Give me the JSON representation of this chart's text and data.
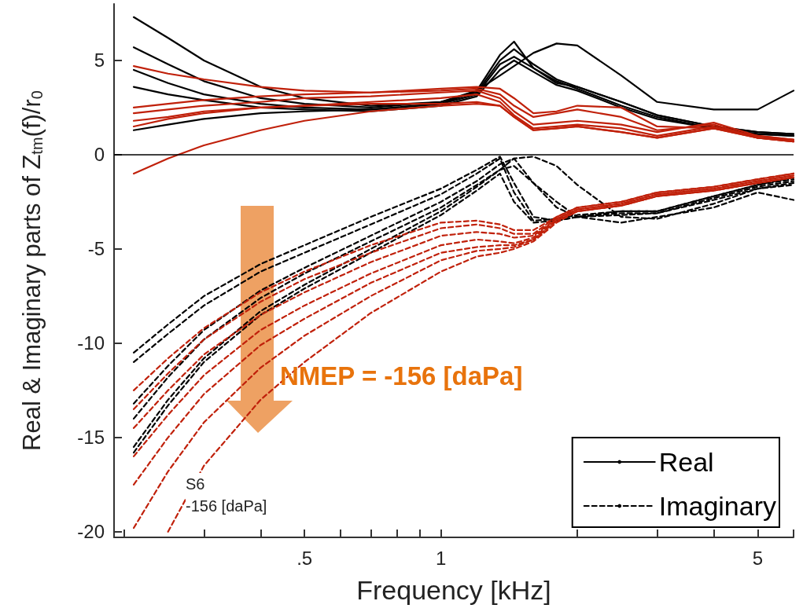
{
  "chart_data": {
    "type": "line",
    "xlabel": "Frequency [kHz]",
    "ylabel": "Real & Imaginary parts of Z$_{tm}$(f)/r$_{0}$",
    "log": "x",
    "grid": false,
    "legend": "bottom right",
    "marker": "none",
    "xlim": [
      0.19,
      6.0
    ],
    "ylim": [
      -20.3,
      8
    ],
    "xticks": [
      {
        "value": 0.2,
        "label": null
      },
      {
        "value": 0.3,
        "label": null
      },
      {
        "value": 0.4,
        "label": null
      },
      {
        "value": 0.5,
        "label": ".5"
      },
      {
        "value": 0.6,
        "label": null
      },
      {
        "value": 0.7,
        "label": null
      },
      {
        "value": 0.8,
        "label": null
      },
      {
        "value": 0.9,
        "label": null
      },
      1,
      {
        "value": 2,
        "label": null
      },
      {
        "value": 3,
        "label": null
      },
      {
        "value": 4,
        "label": null
      },
      5,
      {
        "value": 6,
        "label": null
      }
    ],
    "yticks": [
      -20,
      -15,
      -10,
      -5,
      0,
      5
    ],
    "x": [
      0.21,
      0.25,
      0.3,
      0.4,
      0.5,
      0.7,
      1.0,
      1.2,
      1.35,
      1.45,
      1.6,
      1.8,
      2.0,
      2.5,
      3,
      4,
      5,
      6
    ],
    "series": [
      {
        "name": "Real",
        "color": "#000000",
        "line_style": "solid",
        "values": [
          7.3,
          6.2,
          5.0,
          3.6,
          3.0,
          2.6,
          2.8,
          3.4,
          5.3,
          6.0,
          4.6,
          3.8,
          3.6,
          2.8,
          2.1,
          1.5,
          1.2,
          1.1
        ]
      },
      {
        "color": "#000000",
        "line_style": "solid",
        "values": [
          5.7,
          4.8,
          3.9,
          3.0,
          2.7,
          2.5,
          2.8,
          3.3,
          5.0,
          5.6,
          4.8,
          4.0,
          3.6,
          2.8,
          2.1,
          1.5,
          1.2,
          1.1
        ]
      },
      {
        "color": "#000000",
        "line_style": "solid",
        "values": [
          4.5,
          3.8,
          3.2,
          2.7,
          2.5,
          2.4,
          2.7,
          3.2,
          4.8,
          5.2,
          4.6,
          3.9,
          3.5,
          2.6,
          2.0,
          1.4,
          1.1,
          1.0
        ]
      },
      {
        "color": "#000000",
        "line_style": "solid",
        "values": [
          3.6,
          3.2,
          2.9,
          2.5,
          2.4,
          2.3,
          2.6,
          3.1,
          4.5,
          5.0,
          4.4,
          3.7,
          3.4,
          2.5,
          1.9,
          1.4,
          1.1,
          1.0
        ]
      },
      {
        "color": "#000000",
        "line_style": "solid",
        "values": [
          1.3,
          1.6,
          1.9,
          2.2,
          2.3,
          2.4,
          2.7,
          3.4,
          4.2,
          4.7,
          5.4,
          5.9,
          5.8,
          4.2,
          2.8,
          2.4,
          2.4,
          3.4
        ]
      },
      {
        "color": "#c0200a",
        "line_style": "solid",
        "values": [
          4.7,
          4.3,
          4.0,
          3.6,
          3.4,
          3.3,
          3.5,
          3.6,
          3.5,
          3.0,
          2.2,
          2.3,
          2.6,
          2.5,
          1.5,
          1.4,
          1.0,
          0.8
        ]
      },
      {
        "color": "#c0200a",
        "line_style": "solid",
        "values": [
          2.5,
          2.7,
          2.9,
          3.1,
          3.2,
          3.3,
          3.4,
          3.5,
          3.2,
          2.6,
          2.0,
          2.2,
          2.4,
          2.0,
          1.3,
          1.6,
          0.9,
          0.8
        ]
      },
      {
        "color": "#c0200a",
        "line_style": "solid",
        "values": [
          2.2,
          2.4,
          2.6,
          2.8,
          3.0,
          3.1,
          3.3,
          3.4,
          3.0,
          2.3,
          1.6,
          1.7,
          1.8,
          1.6,
          1.2,
          1.7,
          1.0,
          0.8
        ]
      },
      {
        "color": "#c0200a",
        "line_style": "solid",
        "values": [
          1.8,
          2.0,
          2.3,
          2.5,
          2.6,
          2.8,
          3.0,
          3.2,
          2.8,
          2.1,
          1.4,
          1.5,
          1.6,
          1.4,
          1.0,
          1.5,
          0.9,
          0.7
        ]
      },
      {
        "color": "#c0200a",
        "line_style": "solid",
        "values": [
          1.5,
          1.9,
          2.2,
          2.5,
          2.6,
          2.7,
          2.7,
          2.8,
          2.6,
          2.0,
          1.3,
          1.4,
          1.5,
          1.2,
          0.9,
          1.4,
          0.9,
          0.7
        ]
      },
      {
        "color": "#c0200a",
        "line_style": "solid",
        "values": [
          -1.0,
          -0.2,
          0.5,
          1.3,
          1.8,
          2.3,
          2.6,
          2.7,
          2.6,
          2.0,
          1.3,
          1.4,
          1.5,
          1.2,
          0.9,
          1.4,
          0.9,
          0.7
        ]
      },
      {
        "name": "Imaginary",
        "color": "#000000",
        "line_style": "dashed",
        "values": [
          -10.5,
          -9.0,
          -7.5,
          -5.8,
          -4.8,
          -3.3,
          -1.8,
          -0.8,
          -0.1,
          -1.5,
          -3.3,
          -3.5,
          -3.3,
          -3.0,
          -3.0,
          -2.2,
          -1.6,
          -1.2
        ]
      },
      {
        "color": "#000000",
        "line_style": "dashed",
        "values": [
          -11.0,
          -9.5,
          -8.0,
          -6.2,
          -5.2,
          -3.7,
          -2.1,
          -1.0,
          -0.2,
          -2.0,
          -3.5,
          -3.4,
          -3.2,
          -3.0,
          -3.0,
          -2.2,
          -1.6,
          -1.3
        ]
      },
      {
        "color": "#000000",
        "line_style": "dashed",
        "values": [
          -13.2,
          -11.2,
          -9.3,
          -7.2,
          -6.0,
          -4.3,
          -2.5,
          -1.4,
          -0.5,
          -0.2,
          -1.5,
          -2.8,
          -3.3,
          -3.2,
          -3.1,
          -2.3,
          -1.7,
          -1.4
        ]
      },
      {
        "color": "#000000",
        "line_style": "dashed",
        "values": [
          -14.0,
          -11.8,
          -9.8,
          -7.6,
          -6.3,
          -4.6,
          -2.8,
          -1.6,
          -0.8,
          -0.2,
          -0.1,
          -0.6,
          -1.6,
          -3.3,
          -3.4,
          -2.6,
          -1.8,
          -1.6
        ]
      },
      {
        "color": "#000000",
        "line_style": "dashed",
        "values": [
          -15.5,
          -13.0,
          -10.8,
          -8.3,
          -6.9,
          -5.0,
          -3.0,
          -1.7,
          -0.8,
          -0.6,
          -1.5,
          -2.5,
          -3.3,
          -3.6,
          -3.3,
          -2.8,
          -2.0,
          -2.4
        ]
      },
      {
        "color": "#000000",
        "line_style": "dashed",
        "values": [
          -15.8,
          -13.3,
          -11.0,
          -8.5,
          -7.1,
          -5.2,
          -3.2,
          -1.9,
          -1.0,
          -2.5,
          -3.6,
          -3.5,
          -3.3,
          -3.1,
          -3.1,
          -2.4,
          -1.8,
          -1.5
        ]
      },
      {
        "color": "#c0200a",
        "line_style": "dashed",
        "values": [
          -12.5,
          -10.8,
          -9.2,
          -7.3,
          -6.2,
          -4.8,
          -3.6,
          -3.5,
          -3.7,
          -4.0,
          -4.0,
          -3.3,
          -2.8,
          -2.5,
          -2.0,
          -1.7,
          -1.3,
          -1.0
        ]
      },
      {
        "color": "#c0200a",
        "line_style": "dashed",
        "values": [
          -13.5,
          -11.6,
          -9.8,
          -7.8,
          -6.6,
          -5.2,
          -3.9,
          -3.7,
          -3.9,
          -4.2,
          -4.2,
          -3.3,
          -2.8,
          -2.5,
          -2.0,
          -1.7,
          -1.3,
          -1.0
        ]
      },
      {
        "color": "#c0200a",
        "line_style": "dashed",
        "values": [
          -14.5,
          -12.5,
          -10.6,
          -8.5,
          -7.3,
          -5.7,
          -4.3,
          -4.1,
          -4.2,
          -4.4,
          -4.3,
          -3.4,
          -2.9,
          -2.6,
          -2.1,
          -1.8,
          -1.4,
          -1.1
        ]
      },
      {
        "color": "#c0200a",
        "line_style": "dashed",
        "values": [
          -16.0,
          -13.8,
          -11.7,
          -9.3,
          -8.0,
          -6.3,
          -4.8,
          -4.5,
          -4.6,
          -4.7,
          -4.4,
          -3.4,
          -2.9,
          -2.6,
          -2.1,
          -1.8,
          -1.4,
          -1.1
        ]
      },
      {
        "color": "#c0200a",
        "line_style": "dashed",
        "values": [
          -17.5,
          -15.0,
          -12.7,
          -10.1,
          -8.7,
          -6.8,
          -5.2,
          -4.9,
          -4.8,
          -4.8,
          -4.5,
          -3.5,
          -3.0,
          -2.7,
          -2.2,
          -1.9,
          -1.5,
          -1.2
        ]
      },
      {
        "color": "#c0200a",
        "line_style": "dashed",
        "values": [
          -19.8,
          -16.8,
          -14.2,
          -11.3,
          -9.6,
          -7.5,
          -5.6,
          -5.1,
          -5.0,
          -4.9,
          -4.5,
          -3.5,
          -3.0,
          -2.7,
          -2.2,
          -1.9,
          -1.5,
          -1.2
        ]
      },
      {
        "color": "#c0200a",
        "line_style": "dashed",
        "values": [
          null,
          -20.0,
          -16.5,
          -13.0,
          -11.0,
          -8.4,
          -6.2,
          -5.4,
          -5.2,
          -5.0,
          -4.6,
          -3.6,
          -3.0,
          -2.7,
          -2.2,
          -1.9,
          -1.5,
          -1.2
        ]
      }
    ],
    "ref_lines": [
      {
        "axis": "y",
        "value": 0,
        "color": "#000000"
      }
    ],
    "annotations": [
      "NMEP = -156 [daPa]",
      "S6\n-156 [daPa]"
    ]
  }
}
